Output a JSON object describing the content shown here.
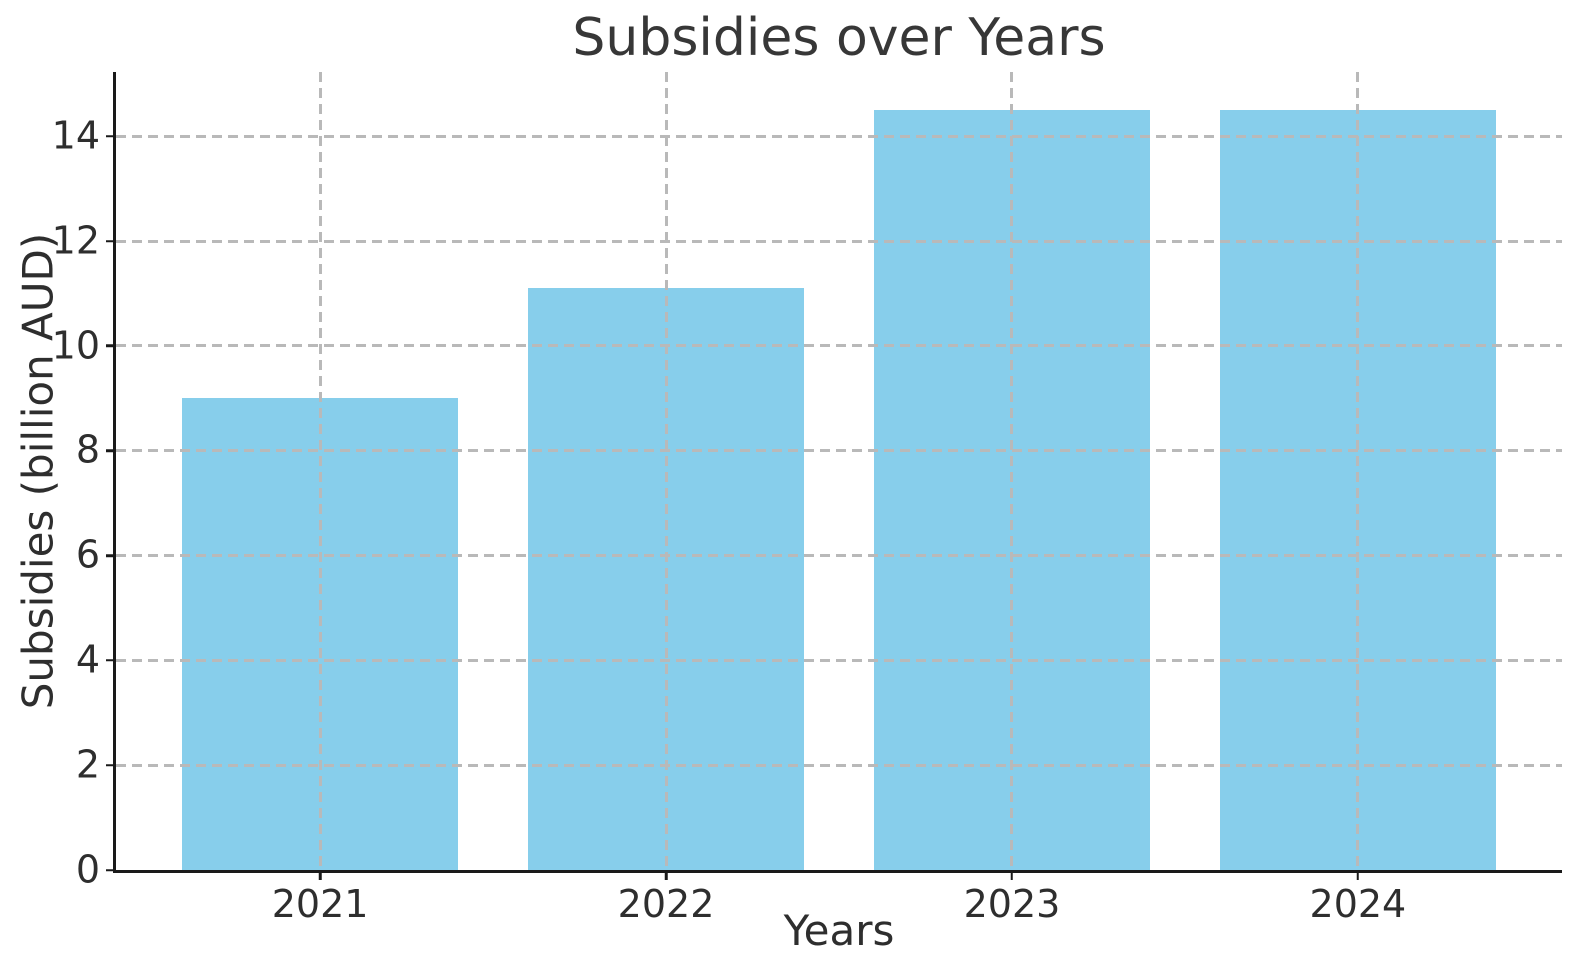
{
  "chart_data": {
    "type": "bar",
    "title": "Subsidies over Years",
    "xlabel": "Years",
    "ylabel": "Subsidies (billion AUD)",
    "categories": [
      "2021",
      "2022",
      "2023",
      "2024"
    ],
    "values": [
      9.0,
      11.1,
      14.5,
      14.5
    ],
    "yticks": [
      0,
      2,
      4,
      6,
      8,
      10,
      12,
      14
    ],
    "ylim": [
      0,
      15.225
    ],
    "xlim": [
      -0.59,
      3.59
    ],
    "bar_width": 0.8,
    "bar_color": "#87CEEB",
    "grid": "dashed gridlines on both axes, drawn above bars",
    "grid_color": "#b9b9b9",
    "axis_color": "#1a1a1a",
    "text_color": "#2e2e2e",
    "legend": "none",
    "background": "#ffffff"
  }
}
